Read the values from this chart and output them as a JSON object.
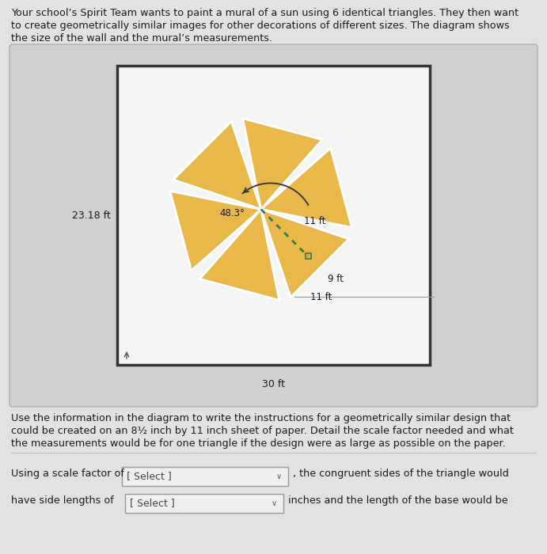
{
  "page_bg": "#e2e2e2",
  "panel_bg": "#d0d0d0",
  "panel_border": "#b0b0b0",
  "wall_color": "#f5f5f5",
  "wall_border": "#333333",
  "triangle_fill": "#e8b84b",
  "triangle_edge": "#ffffff",
  "header_text_line1": "Your school’s Spirit Team wants to paint a mural of a sun using 6 identical triangles. They then want",
  "header_text_line2": "to create geometrically similar images for other decorations of different sizes. The diagram shows",
  "header_text_line3": "the size of the wall and the mural’s measurements.",
  "label_23ft": "23.18 ft",
  "label_30ft": "30 ft",
  "label_48": "48.3°",
  "label_11ft_side": "11 ft",
  "label_9ft": "9 ft",
  "label_11ft_base": "11 ft",
  "body_line1": "Use the information in the diagram to write the instructions for a geometrically similar design that",
  "body_line2": "could be created on an 8½ inch by 11 inch sheet of paper. Detail the scale factor needed and what",
  "body_line3": "the measurements would be for one triangle if the design were as large as possible on the paper.",
  "line1_pre": "Using a scale factor of",
  "select1_text": "[ Select ]",
  "line1_post": ", the congruent sides of the triangle would",
  "line2_pre": "have side lengths of",
  "select2_text": "[ Select ]",
  "line2_post": "inches and the length of the base would be",
  "dashed_color": "#3a7a40",
  "arrow_color": "#333333",
  "text_color": "#1a1a1a",
  "select_bg": "#efefef",
  "select_border": "#999999"
}
